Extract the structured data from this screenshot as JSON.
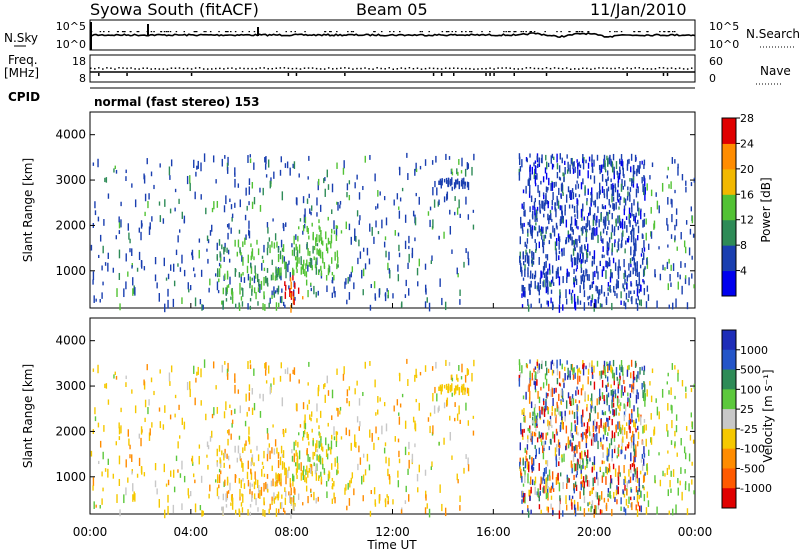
{
  "header": {
    "station": "Syowa South (fitACF)",
    "beam": "Beam 05",
    "date": "11/Jan/2010"
  },
  "top_panels": {
    "nsky_label": "N.Sky",
    "nsky_tick_top": "10^5",
    "nsky_tick_bottom": "10^0",
    "nsearch_tick_top": "10^5",
    "nsearch_tick_bottom": "10^0",
    "nsearch_label": "N.Search",
    "freq_label_1": "Freq.",
    "freq_label_2": "[MHz]",
    "freq_tick_top": "18",
    "freq_tick_bottom": "8",
    "nave_tick_top": "60",
    "nave_tick_bottom": "0",
    "nave_label": "Nave",
    "cpid_label": "CPID",
    "cpid_text": "normal (fast stereo) 153"
  },
  "axes": {
    "ylabel": "Slant Range [km]",
    "xlabel": "Time UT",
    "yticks": [
      "1000",
      "2000",
      "3000",
      "4000"
    ],
    "xticks": [
      "00:00",
      "04:00",
      "08:00",
      "12:00",
      "16:00",
      "20:00",
      "00:00"
    ]
  },
  "power_scale": {
    "label": "Power [dB]",
    "ticks": [
      "4",
      "8",
      "12",
      "16",
      "20",
      "24",
      "28"
    ],
    "colors": [
      "#0000ee",
      "#1a3fb0",
      "#2e8b57",
      "#52c234",
      "#f2b800",
      "#ff8c00",
      "#e00000"
    ]
  },
  "velocity_scale": {
    "label": "Velocity [m s⁻¹]",
    "ticks": [
      "1000",
      "500",
      "100",
      "25",
      "-25",
      "-100",
      "-500",
      "-1000"
    ],
    "colors": [
      "#1e2db8",
      "#2455c8",
      "#2e8b57",
      "#5cc83c",
      "#c8c8c8",
      "#f5c800",
      "#ff8c00",
      "#ff5a00",
      "#e00000"
    ]
  },
  "chart_data": [
    {
      "type": "heatmap",
      "title": "Power",
      "xlabel": "Time UT",
      "ylabel": "Slant Range [km]",
      "xlim": [
        "00:00",
        "24:00"
      ],
      "ylim": [
        180,
        4500
      ],
      "colorbar": "Power [dB]",
      "colorbar_range": [
        0,
        30
      ],
      "note_regions": [
        {
          "time": [
            "00:00",
            "15:00"
          ],
          "range_km": [
            200,
            3600
          ],
          "level_db": "4-12 (sparse scatter)"
        },
        {
          "time": [
            "07:30",
            "08:30"
          ],
          "range_km": [
            200,
            1000
          ],
          "level_db": "20-30 (strong echoes)"
        },
        {
          "time": [
            "17:00",
            "22:00"
          ],
          "range_km": [
            300,
            3600
          ],
          "level_db": "4-12 (dense scatter)"
        }
      ]
    },
    {
      "type": "heatmap",
      "title": "Velocity",
      "xlabel": "Time UT",
      "ylabel": "Slant Range [km]",
      "xlim": [
        "00:00",
        "24:00"
      ],
      "ylim": [
        180,
        4500
      ],
      "colorbar": "Velocity [m s⁻¹]",
      "colorbar_range": [
        -1000,
        1000
      ],
      "note_regions": [
        {
          "time": [
            "00:00",
            "15:00"
          ],
          "range_km": [
            200,
            3600
          ],
          "velocity": "-25 to -100 (mostly)"
        },
        {
          "time": [
            "17:00",
            "22:00"
          ],
          "range_km": [
            300,
            3600
          ],
          "velocity": "mixed -1000 to 1000"
        }
      ]
    }
  ]
}
